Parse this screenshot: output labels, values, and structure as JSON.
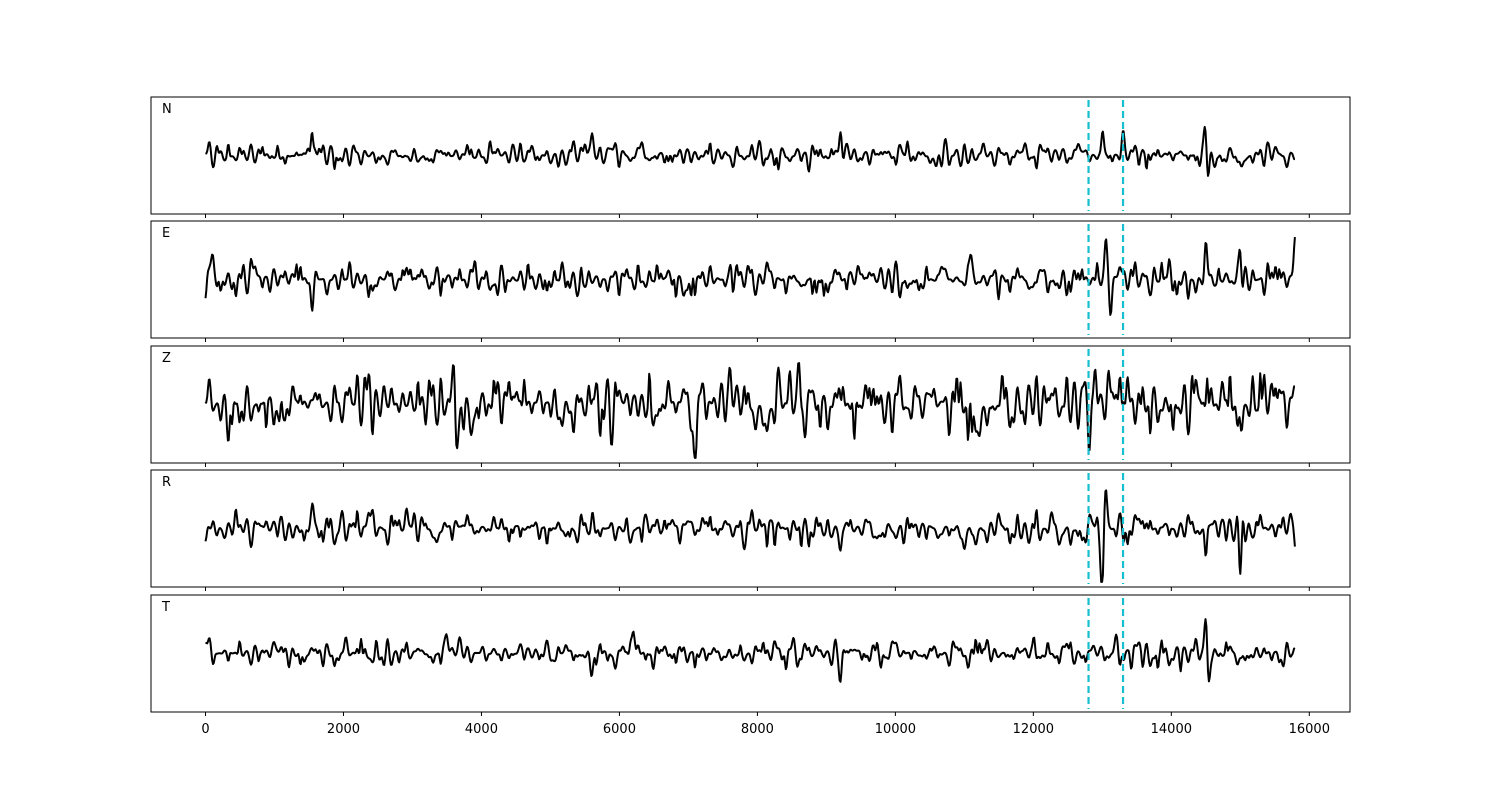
{
  "chart_data": {
    "type": "line",
    "title": "",
    "xlabel": "",
    "ylabel": "",
    "xlim": [
      -790,
      16590
    ],
    "x_range_of_data": [
      0,
      15800
    ],
    "xticks": [
      0,
      2000,
      4000,
      6000,
      8000,
      10000,
      12000,
      14000,
      16000
    ],
    "xtick_labels": [
      "0",
      "2000",
      "4000",
      "6000",
      "8000",
      "10000",
      "12000",
      "14000",
      "16000"
    ],
    "ylim": [
      -1.15,
      1.15
    ],
    "y_ticks_shown": false,
    "grid": false,
    "line_color": "#000000",
    "marker_line_color": "#17becf",
    "marker_line_style": "dashed",
    "vertical_markers": [
      12800,
      13300
    ],
    "panels": [
      {
        "label": "N",
        "noise_amplitude": 0.22,
        "peaks": [
          [
            1550,
            0.3
          ],
          [
            5600,
            0.35
          ],
          [
            9200,
            0.55
          ],
          [
            10600,
            -0.3
          ],
          [
            13000,
            0.5
          ],
          [
            13300,
            0.45
          ],
          [
            14500,
            0.92
          ],
          [
            14520,
            -0.85
          ]
        ]
      },
      {
        "label": "E",
        "noise_amplitude": 0.3,
        "peaks": [
          [
            100,
            0.45
          ],
          [
            1550,
            -0.5
          ],
          [
            7600,
            0.4
          ],
          [
            11100,
            0.6
          ],
          [
            13050,
            0.95
          ],
          [
            13120,
            -0.78
          ],
          [
            14500,
            0.8
          ],
          [
            15000,
            0.9
          ],
          [
            15020,
            -0.65
          ],
          [
            15800,
            0.75
          ]
        ]
      },
      {
        "label": "Z",
        "noise_amplitude": 0.55,
        "peaks": [
          [
            1100,
            -0.65
          ],
          [
            3600,
            0.7
          ],
          [
            3650,
            -0.8
          ],
          [
            7100,
            -0.95
          ],
          [
            7600,
            0.8
          ],
          [
            8600,
            0.75
          ],
          [
            12800,
            -0.7
          ],
          [
            12900,
            0.7
          ]
        ]
      },
      {
        "label": "R",
        "noise_amplitude": 0.3,
        "peaks": [
          [
            1550,
            0.5
          ],
          [
            9200,
            -0.45
          ],
          [
            11000,
            -0.5
          ],
          [
            13050,
            0.75
          ],
          [
            13000,
            -1.0
          ],
          [
            14500,
            -1.0
          ],
          [
            14480,
            0.55
          ],
          [
            15000,
            -0.9
          ],
          [
            15030,
            0.6
          ],
          [
            15800,
            -0.6
          ]
        ]
      },
      {
        "label": "T",
        "noise_amplitude": 0.25,
        "peaks": [
          [
            3500,
            0.35
          ],
          [
            5600,
            -0.55
          ],
          [
            6200,
            0.45
          ],
          [
            9200,
            -0.6
          ],
          [
            12000,
            0.4
          ],
          [
            14500,
            0.85
          ],
          [
            14530,
            -0.88
          ]
        ]
      }
    ]
  }
}
